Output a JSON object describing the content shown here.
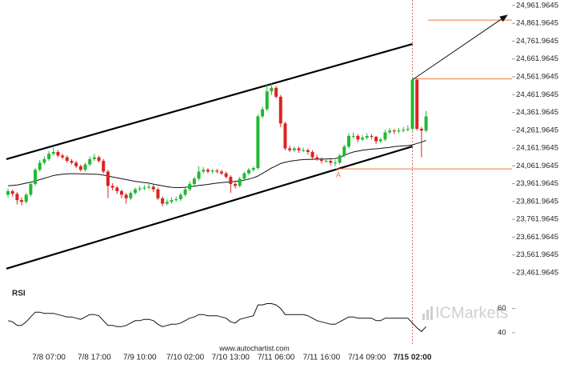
{
  "chart_data": {
    "type": "candlestick",
    "categories": [
      null,
      null,
      null,
      null,
      null,
      null,
      null,
      null,
      null,
      "7/8 07:00",
      null,
      null,
      null,
      null,
      null,
      null,
      null,
      null,
      null,
      "7/8 17:00",
      null,
      null,
      null,
      null,
      null,
      null,
      null,
      null,
      null,
      "7/9 10:00",
      null,
      null,
      null,
      null,
      null,
      null,
      null,
      null,
      null,
      "7/10 02:00",
      null,
      null,
      null,
      null,
      null,
      null,
      null,
      null,
      null,
      "7/10 13:00",
      null,
      null,
      null,
      null,
      null,
      null,
      null,
      null,
      null,
      "7/11 06:00",
      null,
      null,
      null,
      null,
      null,
      null,
      null,
      null,
      null,
      "7/11 16:00",
      null,
      null,
      null,
      null,
      null,
      null,
      null,
      null,
      null,
      "7/14 09:00",
      null,
      null,
      null,
      null,
      null,
      null,
      null,
      null,
      null,
      "7/15 02:00",
      null,
      null,
      null
    ],
    "open": [
      23900,
      23920,
      23905,
      23870,
      23860,
      23900,
      23960,
      24040,
      24080,
      24100,
      24130,
      24140,
      24120,
      24110,
      24090,
      24080,
      24060,
      24040,
      24070,
      24100,
      24110,
      24090,
      24030,
      23950,
      23940,
      23920,
      23900,
      23880,
      23910,
      23930,
      23935,
      23940,
      23945,
      23930,
      23880,
      23850,
      23860,
      23870,
      23875,
      23900,
      23930,
      23960,
      23990,
      24030,
      24040,
      24030,
      24035,
      24030,
      24020,
      24000,
      23960,
      23950,
      23990,
      24020,
      24040,
      24050,
      24340,
      24380,
      24480,
      24500,
      24450,
      24300,
      24160,
      24150,
      24160,
      24150,
      24150,
      24140,
      24110,
      24100,
      24090,
      24090,
      24080,
      24080,
      24120,
      24170,
      24230,
      24230,
      24210,
      24220,
      24230,
      24225,
      24200,
      24210,
      24250,
      24260,
      24255,
      24260,
      24265,
      24270,
      24545,
      24270,
      24260
    ],
    "high": [
      23935,
      23930,
      23915,
      23885,
      23910,
      23970,
      24050,
      24095,
      24115,
      24145,
      24165,
      24150,
      24130,
      24120,
      24100,
      24090,
      24070,
      24080,
      24115,
      24130,
      24120,
      24100,
      24040,
      23965,
      23950,
      23930,
      23910,
      23920,
      23940,
      23950,
      23955,
      23960,
      23955,
      23940,
      23890,
      23875,
      23885,
      23890,
      23910,
      23940,
      23975,
      24000,
      24060,
      24055,
      24050,
      24045,
      24045,
      24040,
      24030,
      24010,
      23975,
      24000,
      24030,
      24050,
      24060,
      24350,
      24395,
      24520,
      24525,
      24510,
      24460,
      24310,
      24175,
      24170,
      24170,
      24165,
      24160,
      24150,
      24125,
      24110,
      24105,
      24100,
      24095,
      24130,
      24180,
      24245,
      24250,
      24240,
      24235,
      24245,
      24240,
      24230,
      24220,
      24265,
      24275,
      24270,
      24275,
      24280,
      24290,
      24560,
      24555,
      24280,
      24370
    ],
    "low": [
      23885,
      23890,
      23845,
      23840,
      23850,
      23890,
      23950,
      24030,
      24070,
      24090,
      24120,
      24110,
      24100,
      24080,
      24070,
      24050,
      24030,
      24030,
      24060,
      24090,
      24080,
      24020,
      23880,
      23925,
      23905,
      23880,
      23850,
      23870,
      23900,
      23920,
      23925,
      23930,
      23915,
      23870,
      23835,
      23840,
      23850,
      23860,
      23865,
      23890,
      23920,
      23950,
      23980,
      24020,
      24020,
      24020,
      24020,
      24010,
      23990,
      23910,
      23935,
      23940,
      23980,
      24010,
      24030,
      24040,
      24330,
      24370,
      24460,
      24440,
      24280,
      24150,
      24140,
      24140,
      24135,
      24140,
      24125,
      24100,
      24090,
      24075,
      24080,
      24065,
      24060,
      24070,
      24110,
      24160,
      24215,
      24195,
      24200,
      24210,
      24210,
      24185,
      24190,
      24200,
      24240,
      24240,
      24245,
      24250,
      24255,
      24260,
      24260,
      24110,
      24250
    ],
    "close": [
      23920,
      23905,
      23870,
      23860,
      23900,
      23960,
      24040,
      24080,
      24100,
      24130,
      24140,
      24120,
      24110,
      24090,
      24080,
      24060,
      24040,
      24070,
      24100,
      24110,
      24090,
      24030,
      23950,
      23940,
      23920,
      23900,
      23880,
      23910,
      23930,
      23935,
      23940,
      23945,
      23930,
      23880,
      23850,
      23860,
      23870,
      23875,
      23900,
      23930,
      23960,
      23990,
      24030,
      24040,
      24030,
      24035,
      24030,
      24020,
      24000,
      23960,
      23950,
      23990,
      24020,
      24040,
      24050,
      24340,
      24380,
      24480,
      24500,
      24450,
      24300,
      24160,
      24150,
      24160,
      24150,
      24150,
      24140,
      24110,
      24100,
      24090,
      24090,
      24080,
      24080,
      24120,
      24170,
      24230,
      24230,
      24210,
      24220,
      24230,
      24225,
      24200,
      24210,
      24250,
      24260,
      24255,
      24260,
      24265,
      24270,
      24545,
      24270,
      24260,
      24340
    ],
    "up_color": "#22b833",
    "down_color": "#dd2222",
    "ylim": [
      23399,
      24993
    ],
    "yticks": [
      {
        "value": 24961.9645,
        "label": "24,961.9645"
      },
      {
        "value": 24861.9645,
        "label": "24,861.9645"
      },
      {
        "value": 24761.9645,
        "label": "24,761.9645"
      },
      {
        "value": 24661.9645,
        "label": "24,661.9645"
      },
      {
        "value": 24561.9645,
        "label": "24,561.9645"
      },
      {
        "value": 24461.9645,
        "label": "24,461.9645"
      },
      {
        "value": 24361.9645,
        "label": "24,361.9645"
      },
      {
        "value": 24261.9645,
        "label": "24,261.9645"
      },
      {
        "value": 24161.9645,
        "label": "24,161.9645"
      },
      {
        "value": 24061.9645,
        "label": "24,061.9645"
      },
      {
        "value": 23961.9645,
        "label": "23,961.9645"
      },
      {
        "value": 23861.9645,
        "label": "23,861.9645"
      },
      {
        "value": 23761.9645,
        "label": "23,761.9645"
      },
      {
        "value": 23661.9645,
        "label": "23,661.9645"
      },
      {
        "value": 23561.9645,
        "label": "23,561.9645"
      },
      {
        "value": 23461.9645,
        "label": "23,461.9645"
      }
    ],
    "grid": false,
    "moving_average": {
      "color": "#111111",
      "values": [
        23950,
        23952,
        23955,
        23960,
        23965,
        23970,
        23978,
        23985,
        23992,
        24000,
        24008,
        24012,
        24015,
        24017,
        24018,
        24018,
        24017,
        24017,
        24016,
        24015,
        24014,
        24010,
        24005,
        24000,
        23995,
        23990,
        23985,
        23980,
        23975,
        23972,
        23968,
        23965,
        23960,
        23955,
        23950,
        23945,
        23942,
        23940,
        23940,
        23942,
        23945,
        23948,
        23952,
        23955,
        23958,
        23962,
        23965,
        23968,
        23970,
        23972,
        23975,
        23978,
        23982,
        23988,
        23995,
        24005,
        24020,
        24035,
        24050,
        24062,
        24075,
        24082,
        24088,
        24092,
        24095,
        24097,
        24098,
        24099,
        24100,
        24100,
        24101,
        24102,
        24103,
        24110,
        24120,
        24132,
        24140,
        24145,
        24150,
        24153,
        24156,
        24158,
        24160,
        24163,
        24166,
        24170,
        24172,
        24174,
        24176,
        24180,
        24188,
        24195,
        24205
      ]
    },
    "channel": {
      "color": "#000000",
      "upper": [
        24100,
        24746
      ],
      "lower": [
        23485,
        24171
      ]
    },
    "levels": {
      "color": "#f0773a",
      "values": [
        24550,
        24880,
        24045
      ]
    },
    "forecast": [
      24545,
      24908
    ],
    "pattern_label": "A",
    "rsi": {
      "title": "RSI",
      "color": "#111111",
      "ylim": [
        34,
        67
      ],
      "yticks": [
        60,
        40
      ],
      "values": [
        50,
        49,
        46,
        46,
        49,
        53,
        57,
        57,
        56,
        56,
        56,
        55,
        54,
        53,
        53,
        52,
        51,
        53,
        55,
        55,
        54,
        50,
        46,
        46,
        45,
        45,
        46,
        48,
        50,
        50,
        51,
        51,
        50,
        47,
        45,
        46,
        47,
        47,
        48,
        50,
        52,
        53,
        55,
        55,
        54,
        54,
        54,
        53,
        52,
        49,
        48,
        51,
        52,
        53,
        54,
        63,
        63,
        64,
        64,
        63,
        60,
        55,
        55,
        55,
        55,
        55,
        54,
        52,
        50,
        49,
        48,
        47,
        47,
        49,
        51,
        53,
        53,
        52,
        52,
        52,
        52,
        50,
        50,
        52,
        52,
        52,
        52,
        52,
        52,
        48,
        44,
        41,
        45
      ]
    },
    "source": "www.autochartist.com",
    "watermark": "ICMarkets"
  }
}
